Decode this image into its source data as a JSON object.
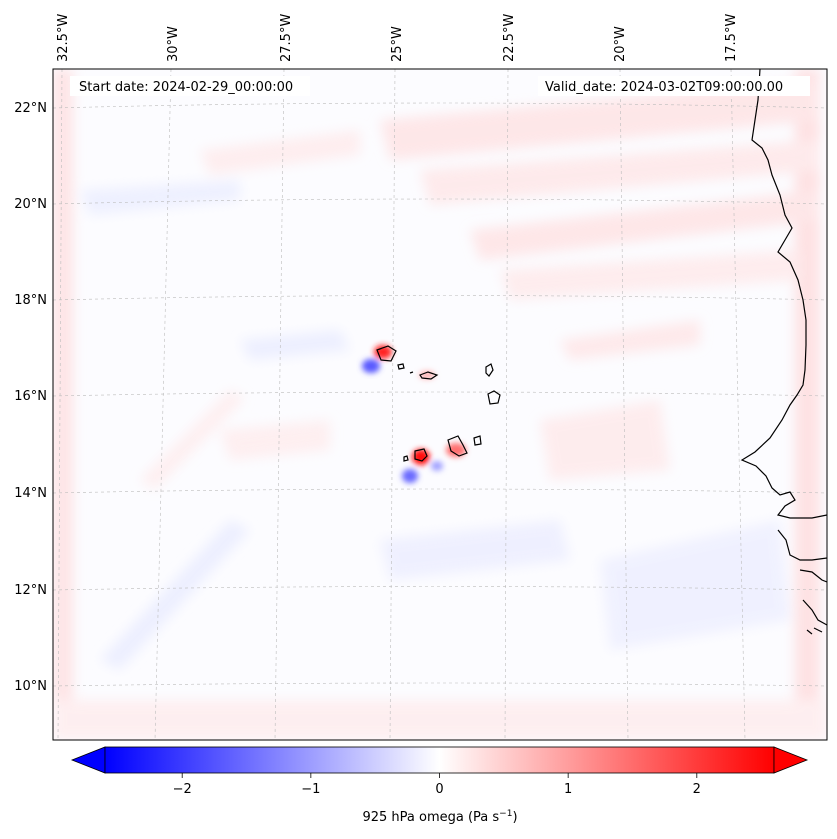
{
  "map": {
    "start_date": "Start date: 2024-02-29_00:00:00",
    "valid_date": "Valid_date: 2024-03-02T09:00:00.00",
    "lon_labels": [
      "32.5°W",
      "30°W",
      "27.5°W",
      "25°W",
      "22.5°W",
      "20°W",
      "17.5°W"
    ],
    "lat_labels": [
      "22°N",
      "20°N",
      "18°N",
      "16°N",
      "14°N",
      "12°N",
      "10°N"
    ],
    "colors": {
      "negative": "#0000ff",
      "neutral": "#ffffff",
      "positive": "#ff0000",
      "coast": "#000000",
      "grid": "#bbbbbb"
    }
  },
  "colorbar": {
    "label": "925 hPa omega (Pa s",
    "label_sup": "−1",
    "label_close": ")",
    "range": [
      -2.6,
      2.6
    ],
    "ticks": [
      -2,
      -1,
      0,
      1,
      2
    ],
    "tick_labels": [
      "−2",
      "−1",
      "0",
      "1",
      "2"
    ]
  }
}
